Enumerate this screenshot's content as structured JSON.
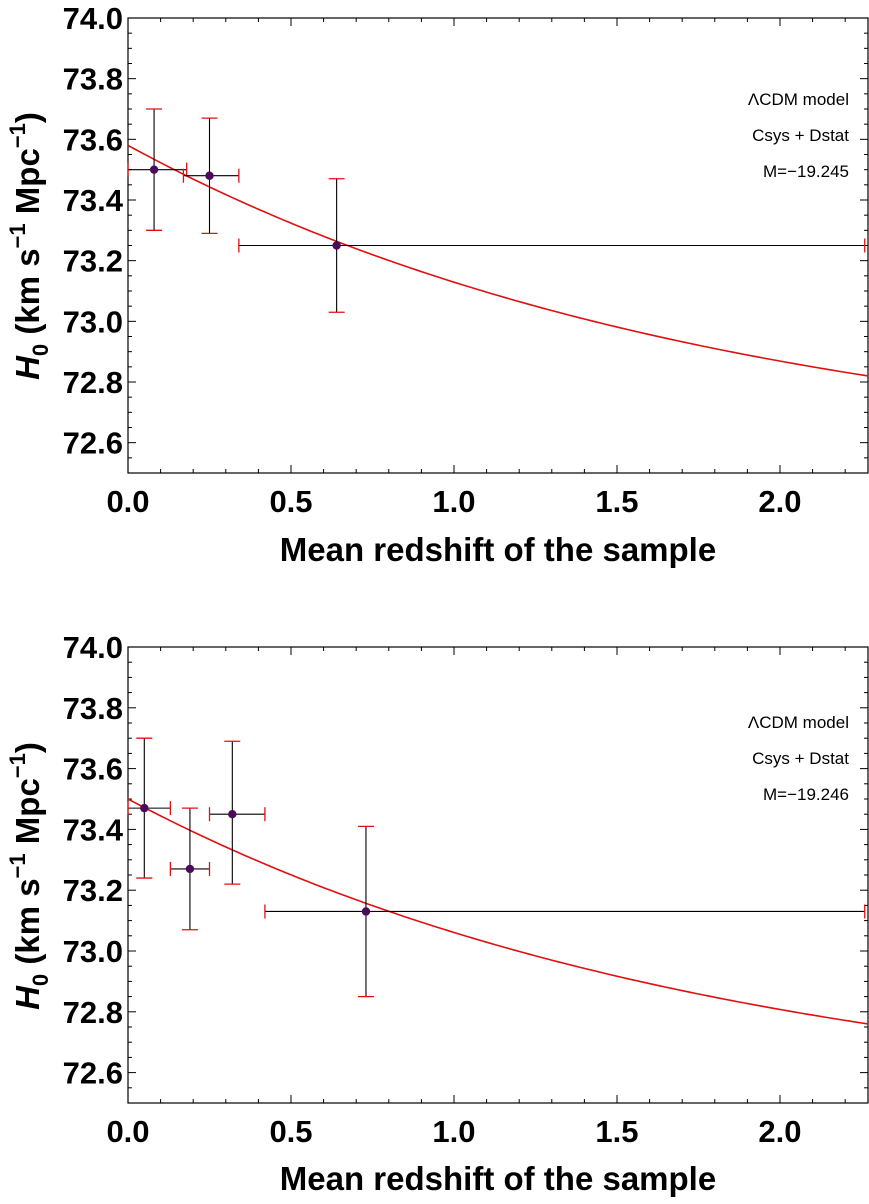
{
  "chart_data": [
    {
      "type": "scatter",
      "xlabel": "Mean redshift of the sample",
      "ylabel": {
        "main": "H",
        "sub": "0",
        "rest": " (km s",
        "sup1": "−1",
        "mid": " Mpc",
        "sup2": "−1",
        "end": ")"
      },
      "xlim": [
        0.0,
        2.27
      ],
      "ylim": [
        72.5,
        74.0
      ],
      "xticks": [
        0.0,
        0.5,
        1.0,
        1.5,
        2.0
      ],
      "xtick_labels": [
        "0.0",
        "0.5",
        "1.0",
        "1.5",
        "2.0"
      ],
      "yticks": [
        72.6,
        72.8,
        73.0,
        73.2,
        73.4,
        73.6,
        73.8,
        74.0
      ],
      "ytick_labels": [
        "72.6",
        "72.8",
        "73.0",
        "73.2",
        "73.4",
        "73.6",
        "73.8",
        "74.0"
      ],
      "legend": [
        "ΛCDM model",
        "Csys + Dstat",
        "M=−19.245"
      ],
      "legend_position": "top-right",
      "colors": {
        "points": "#4b0b5a",
        "fit": "#e01010",
        "errorbar": "#000000",
        "cap": "#e01010"
      },
      "points": [
        {
          "x": 0.08,
          "y": 73.5,
          "xerr": [
            0.0,
            0.18
          ],
          "yerr": [
            73.3,
            73.7
          ]
        },
        {
          "x": 0.25,
          "y": 73.48,
          "xerr": [
            0.17,
            0.34
          ],
          "yerr": [
            73.29,
            73.67
          ]
        },
        {
          "x": 0.64,
          "y": 73.25,
          "xerr": [
            0.34,
            2.26
          ],
          "yerr": [
            73.03,
            73.47
          ]
        }
      ],
      "fit_line": {
        "H0_at_0": 73.58,
        "H0_at_xmax": 72.82
      }
    },
    {
      "type": "scatter",
      "xlabel": "Mean redshift of the sample",
      "ylabel": {
        "main": "H",
        "sub": "0",
        "rest": " (km s",
        "sup1": "−1",
        "mid": " Mpc",
        "sup2": "−1",
        "end": ")"
      },
      "xlim": [
        0.0,
        2.27
      ],
      "ylim": [
        72.5,
        74.0
      ],
      "xticks": [
        0.0,
        0.5,
        1.0,
        1.5,
        2.0
      ],
      "xtick_labels": [
        "0.0",
        "0.5",
        "1.0",
        "1.5",
        "2.0"
      ],
      "yticks": [
        72.6,
        72.8,
        73.0,
        73.2,
        73.4,
        73.6,
        73.8,
        74.0
      ],
      "ytick_labels": [
        "72.6",
        "72.8",
        "73.0",
        "73.2",
        "73.4",
        "73.6",
        "73.8",
        "74.0"
      ],
      "legend": [
        "ΛCDM model",
        "Csys + Dstat",
        "M=−19.246"
      ],
      "legend_position": "top-right",
      "colors": {
        "points": "#4b0b5a",
        "fit": "#e01010",
        "errorbar": "#000000",
        "cap": "#e01010"
      },
      "points": [
        {
          "x": 0.05,
          "y": 73.47,
          "xerr": [
            0.0,
            0.13
          ],
          "yerr": [
            73.24,
            73.7
          ]
        },
        {
          "x": 0.19,
          "y": 73.27,
          "xerr": [
            0.13,
            0.25
          ],
          "yerr": [
            73.07,
            73.47
          ]
        },
        {
          "x": 0.32,
          "y": 73.45,
          "xerr": [
            0.25,
            0.42
          ],
          "yerr": [
            73.22,
            73.69
          ]
        },
        {
          "x": 0.73,
          "y": 73.13,
          "xerr": [
            0.42,
            2.26
          ],
          "yerr": [
            72.85,
            73.41
          ]
        }
      ],
      "fit_line": {
        "H0_at_0": 73.5,
        "H0_at_xmax": 72.76
      }
    }
  ]
}
